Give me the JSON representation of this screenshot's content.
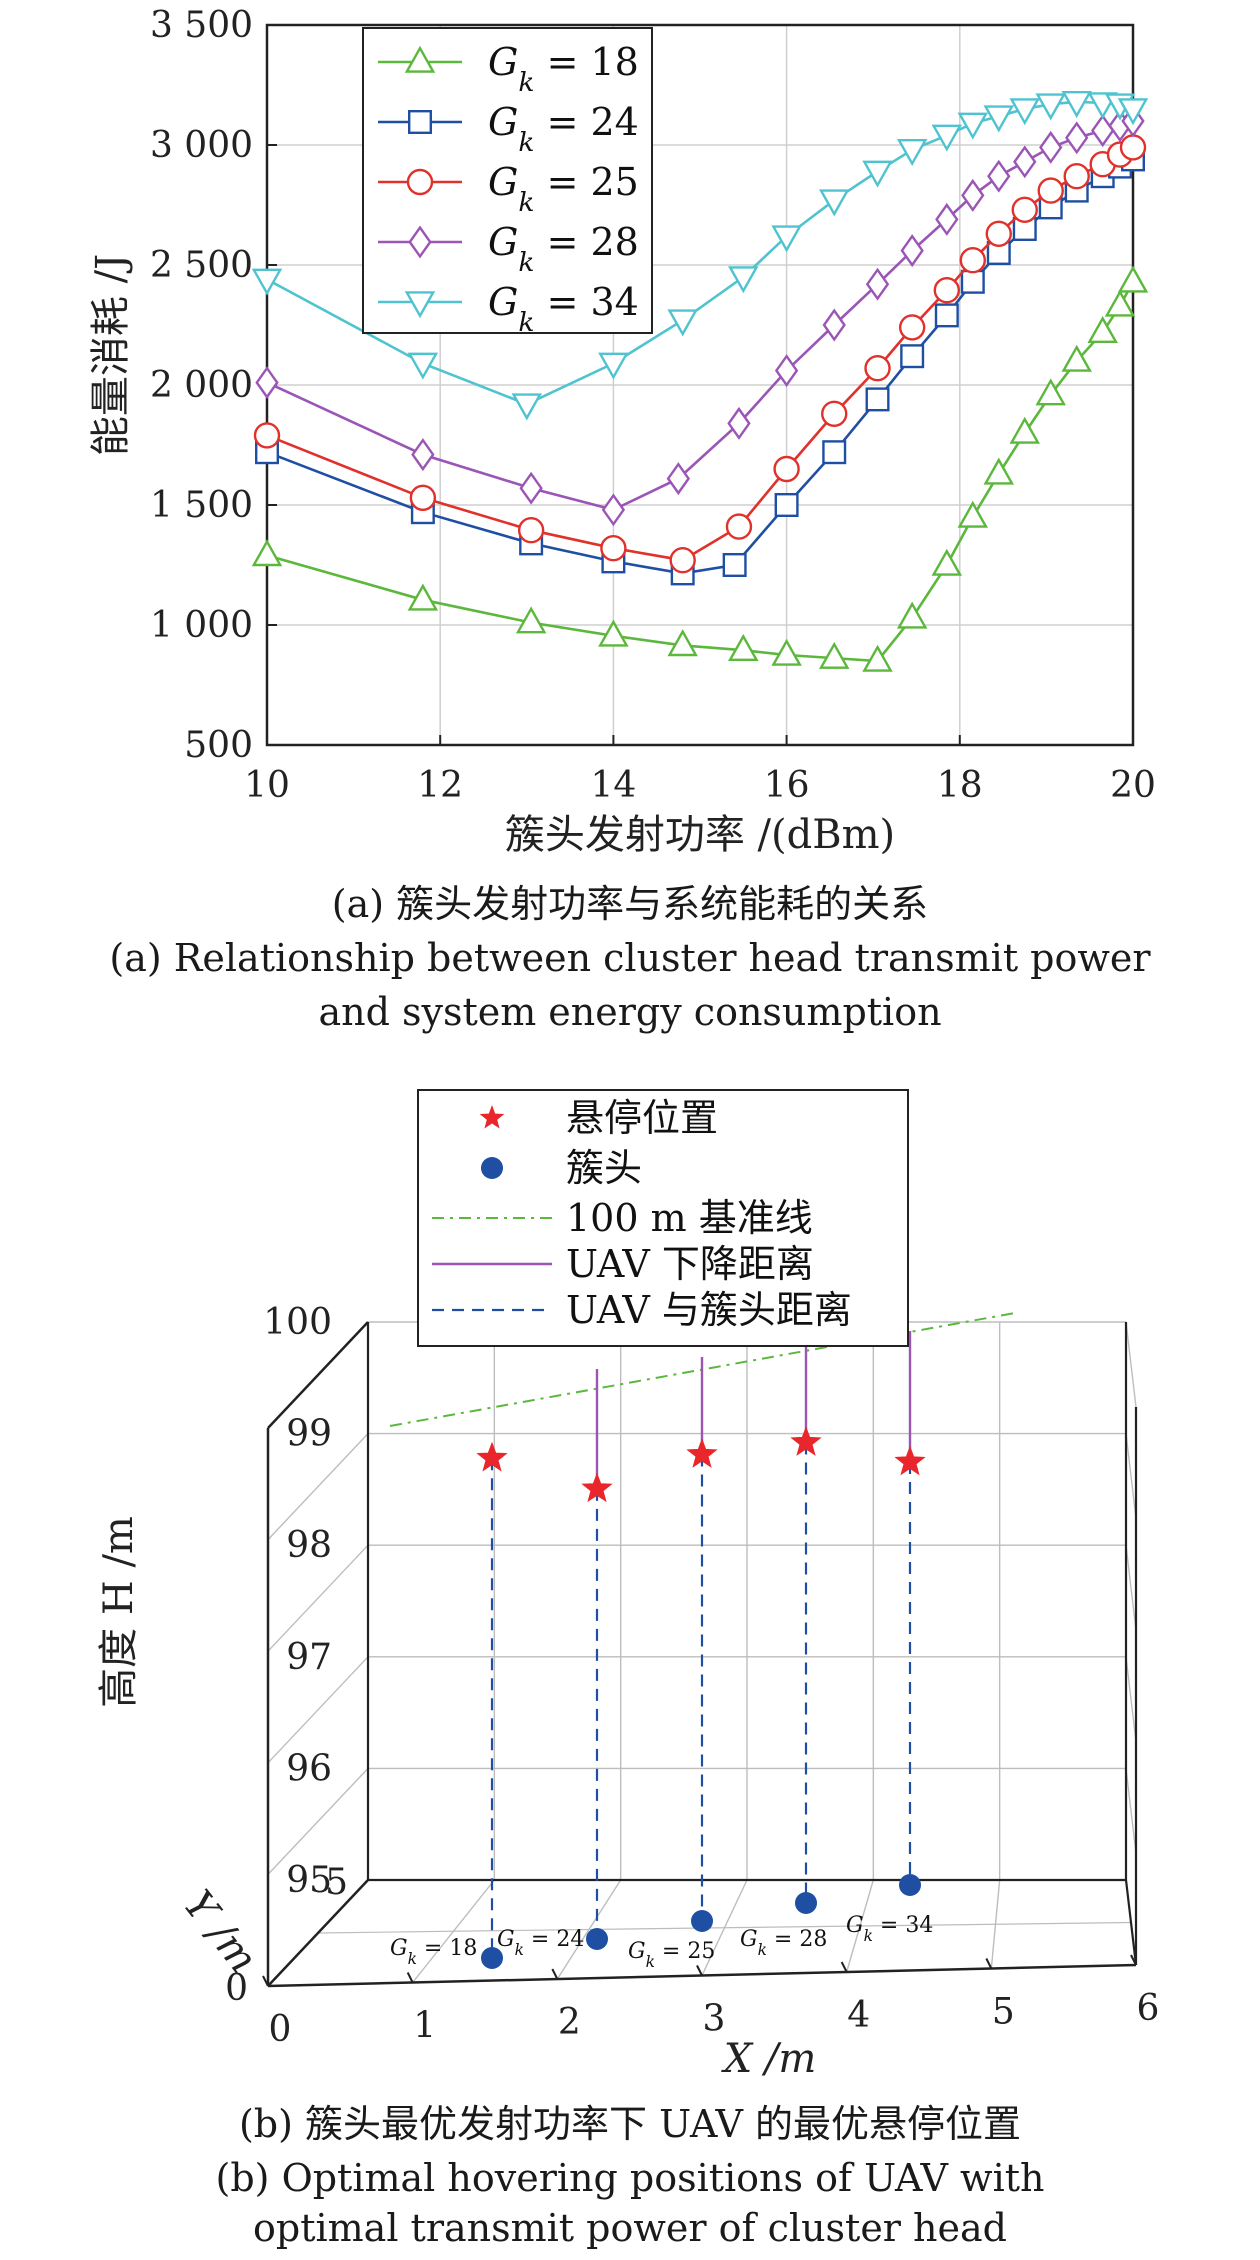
{
  "chart_data": [
    {
      "type": "line",
      "xlabel": "簇头发射功率 /(dBm)",
      "ylabel": "能量消耗 /J",
      "xlim": [
        10,
        20
      ],
      "ylim": [
        500,
        3500
      ],
      "xticks": [
        "10",
        "12",
        "14",
        "16",
        "18",
        "20"
      ],
      "yticks": [
        "500",
        "1 000",
        "1 500",
        "2 000",
        "2 500",
        "3 000",
        "3 500"
      ],
      "grid": true,
      "legend_position": "top-left",
      "caption_cn": "(a) 簇头发射功率与系统能耗的关系",
      "caption_en_1": "(a) Relationship between cluster head transmit power",
      "caption_en_2": "and system energy consumption",
      "series": [
        {
          "name": "Gk = 18",
          "label_var": "G",
          "label_sub": "k",
          "label_rest": " = 18",
          "color": "#5cb83c",
          "marker": "triangle-up",
          "x": [
            10,
            11.8,
            13.05,
            14,
            14.8,
            15.5,
            16,
            16.55,
            17.05,
            17.45,
            17.85,
            18.15,
            18.45,
            18.75,
            19.05,
            19.35,
            19.65,
            19.85,
            20
          ],
          "y": [
            1290,
            1105,
            1010,
            955,
            915,
            895,
            875,
            862,
            850,
            1030,
            1250,
            1450,
            1630,
            1800,
            1960,
            2100,
            2220,
            2330,
            2430
          ]
        },
        {
          "name": "Gk = 24",
          "label_var": "G",
          "label_sub": "k",
          "label_rest": " = 24",
          "color": "#1f4fa3",
          "marker": "square",
          "x": [
            10,
            11.8,
            13.05,
            14,
            14.8,
            15.4,
            16,
            16.55,
            17.05,
            17.45,
            17.85,
            18.15,
            18.45,
            18.75,
            19.05,
            19.35,
            19.65,
            19.85,
            20
          ],
          "y": [
            1720,
            1470,
            1340,
            1265,
            1215,
            1250,
            1500,
            1720,
            1940,
            2120,
            2290,
            2430,
            2550,
            2650,
            2740,
            2810,
            2870,
            2910,
            2940
          ]
        },
        {
          "name": "Gk = 25",
          "label_var": "G",
          "label_sub": "k",
          "label_rest": " = 25",
          "color": "#e0312b",
          "marker": "circle",
          "x": [
            10,
            11.8,
            13.05,
            14,
            14.8,
            15.45,
            16,
            16.55,
            17.05,
            17.45,
            17.85,
            18.15,
            18.45,
            18.75,
            19.05,
            19.35,
            19.65,
            19.85,
            20
          ],
          "y": [
            1790,
            1530,
            1395,
            1320,
            1270,
            1410,
            1650,
            1880,
            2070,
            2240,
            2395,
            2520,
            2630,
            2730,
            2810,
            2870,
            2920,
            2960,
            2990
          ]
        },
        {
          "name": "Gk = 28",
          "label_var": "G",
          "label_sub": "k",
          "label_rest": " = 28",
          "color": "#9b55b5",
          "marker": "diamond",
          "x": [
            10,
            11.8,
            13.05,
            14,
            14.75,
            15.45,
            16,
            16.55,
            17.05,
            17.45,
            17.85,
            18.15,
            18.45,
            18.75,
            19.05,
            19.35,
            19.65,
            19.85,
            20
          ],
          "y": [
            2010,
            1710,
            1570,
            1480,
            1610,
            1840,
            2060,
            2250,
            2420,
            2560,
            2690,
            2790,
            2870,
            2930,
            2990,
            3030,
            3060,
            3080,
            3100
          ]
        },
        {
          "name": "Gk = 34",
          "label_var": "G",
          "label_sub": "k",
          "label_rest": " = 34",
          "color": "#4fc3d0",
          "marker": "triangle-down",
          "x": [
            10,
            11.8,
            13,
            14,
            14.8,
            15.5,
            16,
            16.55,
            17.05,
            17.45,
            17.85,
            18.15,
            18.45,
            18.75,
            19.05,
            19.35,
            19.65,
            19.85,
            20
          ],
          "y": [
            2440,
            2090,
            1920,
            2090,
            2270,
            2450,
            2620,
            2770,
            2890,
            2980,
            3040,
            3090,
            3120,
            3150,
            3170,
            3180,
            3175,
            3170,
            3150
          ]
        }
      ]
    },
    {
      "type": "scatter",
      "xlabel": "X /m",
      "ylabel": "高度 H /m",
      "zlabel_text": "Y /m",
      "xticks": [
        "0",
        "1",
        "2",
        "3",
        "4",
        "5",
        "6"
      ],
      "zticks": [
        "95",
        "96",
        "97",
        "98",
        "99",
        "100"
      ],
      "yticks_depth": [
        "0",
        "5"
      ],
      "xlim": [
        0,
        6
      ],
      "ylim_depth": [
        0,
        5
      ],
      "zlim": [
        95,
        100
      ],
      "grid": true,
      "legend_position": "top-center",
      "legend": [
        {
          "label": "悬停位置",
          "style": "red-star"
        },
        {
          "label": "簇头",
          "style": "blue-dot"
        },
        {
          "label": "100 m 基准线",
          "style": "green-dashdot"
        },
        {
          "label": "UAV 下降距离",
          "style": "purple-solid"
        },
        {
          "label": "UAV 与簇头距离",
          "style": "blue-dashed"
        }
      ],
      "colors": {
        "hover": "#e8262c",
        "cluster_head": "#1f4fa3",
        "baseline": "#5cb83c",
        "descent": "#9b55b5",
        "distance": "#1f4fa3"
      },
      "points": [
        {
          "gk_var": "G",
          "gk_sub": "k",
          "gk_rest": " = 18",
          "x": 1,
          "y": 2,
          "hover_height": 99.55,
          "head_height": 95
        },
        {
          "gk_var": "G",
          "gk_sub": "k",
          "gk_rest": " = 24",
          "x": 2,
          "y": 2.5,
          "hover_height": 99.15,
          "head_height": 95
        },
        {
          "gk_var": "G",
          "gk_sub": "k",
          "gk_rest": " = 25",
          "x": 3,
          "y": 3,
          "hover_height": 99.35,
          "head_height": 95
        },
        {
          "gk_var": "G",
          "gk_sub": "k",
          "gk_rest": " = 28",
          "x": 4,
          "y": 3.5,
          "hover_height": 99.35,
          "head_height": 95
        },
        {
          "gk_var": "G",
          "gk_sub": "k",
          "gk_rest": " = 34",
          "x": 5,
          "y": 4,
          "hover_height": 99.05,
          "head_height": 95
        }
      ],
      "caption_cn": "(b) 簇头最优发射功率下 UAV 的最优悬停位置",
      "caption_en_1": "(b) Optimal hovering positions of UAV with",
      "caption_en_2": "optimal transmit power of cluster head"
    }
  ]
}
